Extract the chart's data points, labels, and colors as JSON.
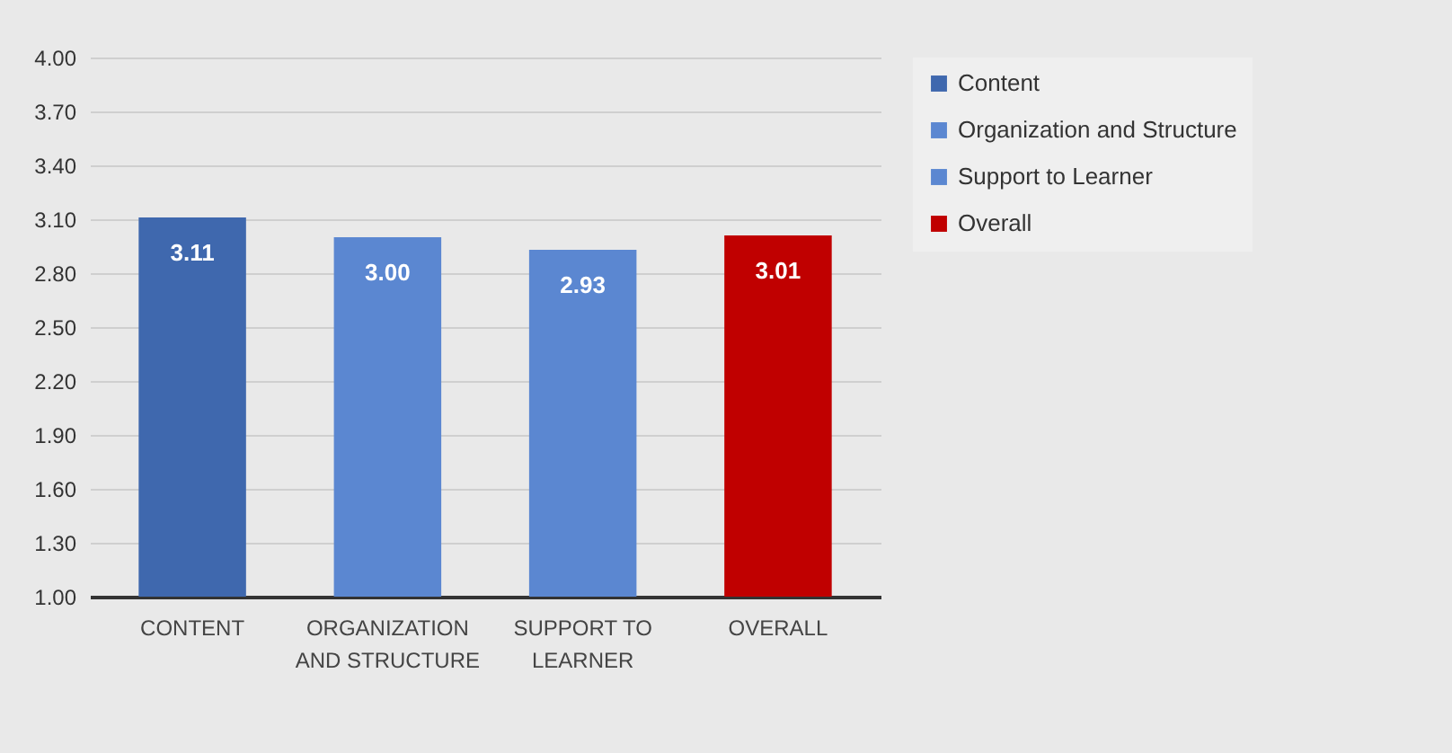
{
  "chart_data": {
    "type": "bar",
    "categories": [
      "CONTENT",
      "ORGANIZATION AND STRUCTURE",
      "SUPPORT TO LEARNER",
      "OVERALL"
    ],
    "series": [
      {
        "name": "Content",
        "color": "#3f68ae",
        "values": [
          3.11,
          null,
          null,
          null
        ]
      },
      {
        "name": "Organization and Structure",
        "color": "#5b87d1",
        "values": [
          null,
          3.0,
          null,
          null
        ]
      },
      {
        "name": "Support to Learner",
        "color": "#5b87d1",
        "values": [
          null,
          null,
          2.93,
          null
        ]
      },
      {
        "name": "Overall",
        "color": "#c00000",
        "values": [
          null,
          null,
          null,
          3.01
        ]
      }
    ],
    "ylim": [
      1.0,
      4.0
    ],
    "yticks": [
      {
        "value": 1.0,
        "label": "1.00"
      },
      {
        "value": 1.3,
        "label": "1.30"
      },
      {
        "value": 1.6,
        "label": "1.60"
      },
      {
        "value": 1.9,
        "label": "1.90"
      },
      {
        "value": 2.2,
        "label": "2.20"
      },
      {
        "value": 2.5,
        "label": "2.50"
      },
      {
        "value": 2.8,
        "label": "2.80"
      },
      {
        "value": 3.1,
        "label": "3.10"
      },
      {
        "value": 3.4,
        "label": "3.40"
      },
      {
        "value": 3.7,
        "label": "3.70"
      },
      {
        "value": 4.0,
        "label": "4.00"
      }
    ],
    "value_labels": [
      "3.11",
      "3.00",
      "2.93",
      "3.01"
    ],
    "grid": "y",
    "legend": "right"
  }
}
